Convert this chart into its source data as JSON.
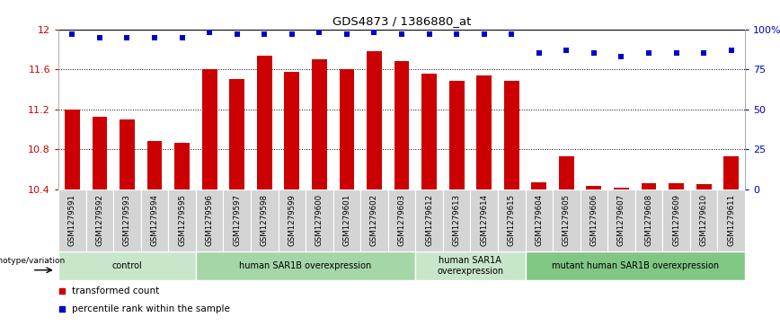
{
  "title": "GDS4873 / 1386880_at",
  "samples": [
    "GSM1279591",
    "GSM1279592",
    "GSM1279593",
    "GSM1279594",
    "GSM1279595",
    "GSM1279596",
    "GSM1279597",
    "GSM1279598",
    "GSM1279599",
    "GSM1279600",
    "GSM1279601",
    "GSM1279602",
    "GSM1279603",
    "GSM1279612",
    "GSM1279613",
    "GSM1279614",
    "GSM1279615",
    "GSM1279604",
    "GSM1279605",
    "GSM1279606",
    "GSM1279607",
    "GSM1279608",
    "GSM1279609",
    "GSM1279610",
    "GSM1279611"
  ],
  "bar_values": [
    11.2,
    11.12,
    11.1,
    10.88,
    10.86,
    11.6,
    11.5,
    11.74,
    11.57,
    11.7,
    11.6,
    11.78,
    11.68,
    11.56,
    11.48,
    11.54,
    11.48,
    10.47,
    10.73,
    10.43,
    10.41,
    10.46,
    10.46,
    10.45,
    10.73
  ],
  "blue_dot_values": [
    97,
    95,
    95,
    95,
    95,
    98,
    97,
    97,
    97,
    98,
    97,
    98,
    97,
    97,
    97,
    97,
    97,
    85,
    87,
    85,
    83,
    85,
    85,
    85,
    87
  ],
  "groups": [
    {
      "label": "control",
      "start": 0,
      "end": 5,
      "color": "#c8e6c9"
    },
    {
      "label": "human SAR1B overexpression",
      "start": 5,
      "end": 13,
      "color": "#a5d6a7"
    },
    {
      "label": "human SAR1A\noverexpression",
      "start": 13,
      "end": 17,
      "color": "#c8e6c9"
    },
    {
      "label": "mutant human SAR1B overexpression",
      "start": 17,
      "end": 25,
      "color": "#81c784"
    }
  ],
  "ylim": [
    10.4,
    12.0
  ],
  "yticks": [
    10.4,
    10.8,
    11.2,
    11.6,
    12.0
  ],
  "ytick_labels": [
    "10.4",
    "10.8",
    "11.2",
    "11.6",
    "12"
  ],
  "right_yticks": [
    0,
    25,
    50,
    75,
    100
  ],
  "right_ytick_labels": [
    "0",
    "25",
    "50",
    "75",
    "100%"
  ],
  "bar_color": "#cc0000",
  "dot_color": "#0000cc",
  "tick_label_color_left": "#cc0000",
  "tick_label_color_right": "#0000cc",
  "genotype_label": "genotype/variation",
  "legend_transformed": "transformed count",
  "legend_percentile": "percentile rank within the sample"
}
